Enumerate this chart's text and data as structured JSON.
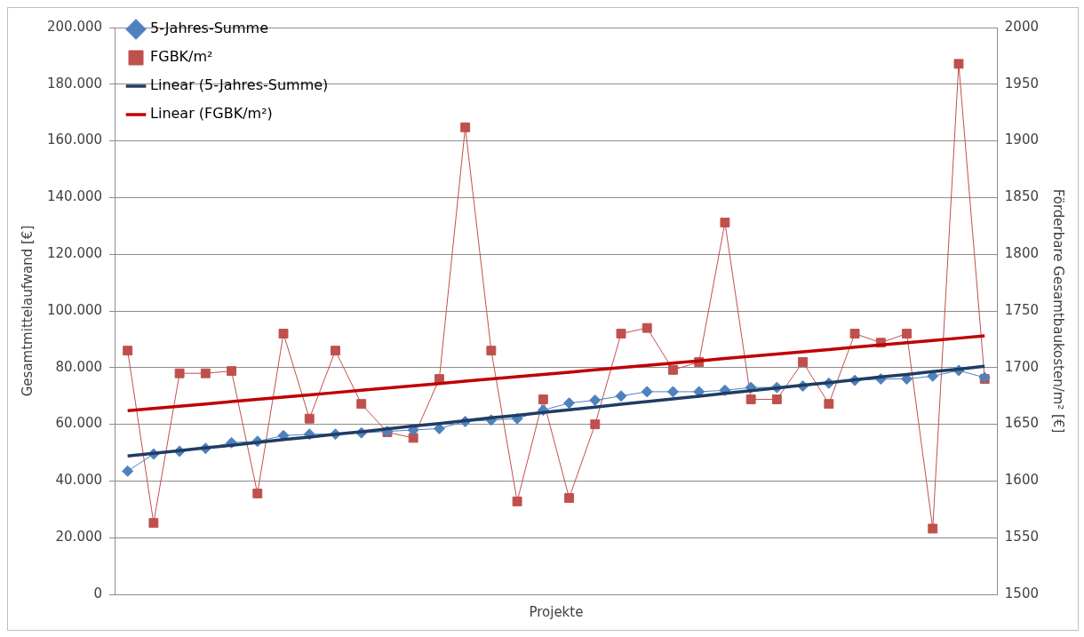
{
  "chart_data": {
    "type": "line",
    "xlabel": "Projekte",
    "ylabel": "Gesamtmittelaufwand [€]",
    "y2label": "Förderbare Gesamtbaukosten/m² [€]",
    "categories": [
      null,
      null,
      null,
      null,
      null,
      null,
      null,
      null,
      null,
      null,
      null,
      null,
      null,
      null,
      null,
      null,
      null,
      null,
      null,
      null,
      null,
      null,
      null,
      null,
      null,
      null,
      null,
      null,
      null,
      null,
      null,
      null,
      null,
      null
    ],
    "series": [
      {
        "name": "5-Jahres-Summe",
        "color": "#4f81bd",
        "marker": "diamond",
        "values": [
          43500,
          49500,
          50500,
          51500,
          53500,
          54000,
          56000,
          56500,
          56500,
          57000,
          57500,
          58000,
          58500,
          61000,
          61500,
          62000,
          65000,
          67500,
          68500,
          70000,
          71500,
          71500,
          71500,
          72000,
          73000,
          73000,
          73500,
          74500,
          75500,
          76000,
          76000,
          77000,
          79000,
          76500
        ]
      },
      {
        "name": "FGBK/m²",
        "color": "#c0504d",
        "marker": "square",
        "axis": "y2",
        "values": [
          1715,
          1563,
          1695,
          1695,
          1697,
          1589,
          1730,
          1655,
          1715,
          1668,
          1643,
          1638,
          1690,
          1912,
          1715,
          1582,
          1672,
          1585,
          1650,
          1730,
          1735,
          1698,
          1705,
          1828,
          1672,
          1672,
          1705,
          1668,
          1730,
          1722,
          1730,
          1558,
          1968,
          1690
        ]
      },
      {
        "name": "Linear (5-Jahres-Summe)",
        "color": "#1f3d63",
        "marker": "none",
        "values": [
          48800,
          49800,
          50700,
          51700,
          52600,
          53600,
          54600,
          55500,
          56500,
          57400,
          58400,
          59400,
          60300,
          61300,
          62300,
          63200,
          64200,
          65100,
          66100,
          67100,
          68000,
          69000,
          69900,
          70900,
          71900,
          72800,
          73800,
          74700,
          75700,
          76700,
          77600,
          78600,
          79500,
          80500
        ]
      },
      {
        "name": "Linear (FGBK/m²)",
        "color": "#c00000",
        "marker": "none",
        "axis": "y2",
        "values": [
          1662,
          1664,
          1666,
          1668,
          1670,
          1672,
          1674,
          1676,
          1678,
          1680,
          1682,
          1684,
          1686,
          1688,
          1690,
          1692,
          1694,
          1696,
          1698,
          1700,
          1702,
          1704,
          1706,
          1708,
          1710,
          1712,
          1714,
          1716,
          1718,
          1720,
          1722,
          1724,
          1726,
          1728
        ]
      }
    ],
    "ylim": [
      0,
      200000
    ],
    "yticks": [
      {
        "value": 0,
        "label": "0"
      },
      {
        "value": 20000,
        "label": "20.000"
      },
      {
        "value": 40000,
        "label": "40.000"
      },
      {
        "value": 60000,
        "label": "60.000"
      },
      {
        "value": 80000,
        "label": "80.000"
      },
      {
        "value": 100000,
        "label": "100.000"
      },
      {
        "value": 120000,
        "label": "120.000"
      },
      {
        "value": 140000,
        "label": "140.000"
      },
      {
        "value": 160000,
        "label": "160.000"
      },
      {
        "value": 180000,
        "label": "180.000"
      },
      {
        "value": 200000,
        "label": "200.000"
      }
    ],
    "y2lim": [
      1500,
      2000
    ],
    "y2ticks": [
      1500,
      1550,
      1600,
      1650,
      1700,
      1750,
      1800,
      1850,
      1900,
      1950,
      2000
    ],
    "grid": "y",
    "legend": "top left"
  }
}
